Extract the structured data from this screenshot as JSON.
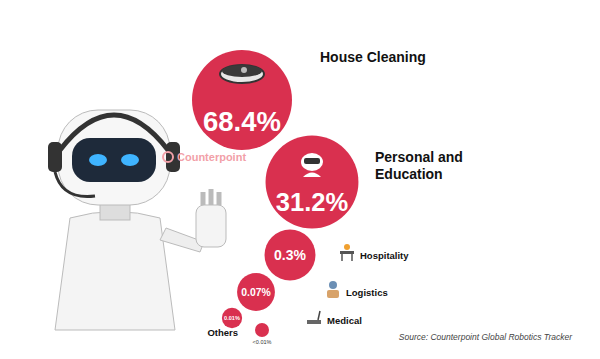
{
  "chart_data": {
    "type": "bubble",
    "categories": [
      "House Cleaning",
      "Personal and Education",
      "Hospitality",
      "Logistics",
      "Medical",
      "Others"
    ],
    "values": [
      68.4,
      31.2,
      0.3,
      0.07,
      0.01,
      0.005
    ],
    "value_labels": [
      "68.4%",
      "31.2%",
      "0.3%",
      "0.07%",
      "0.01%",
      "<0.01%"
    ],
    "color": "#d9304f",
    "data_labels": true,
    "tick_labels": false,
    "source": "Source: Counterpoint Global Robotics Tracker",
    "watermark": "Counterpoint"
  }
}
